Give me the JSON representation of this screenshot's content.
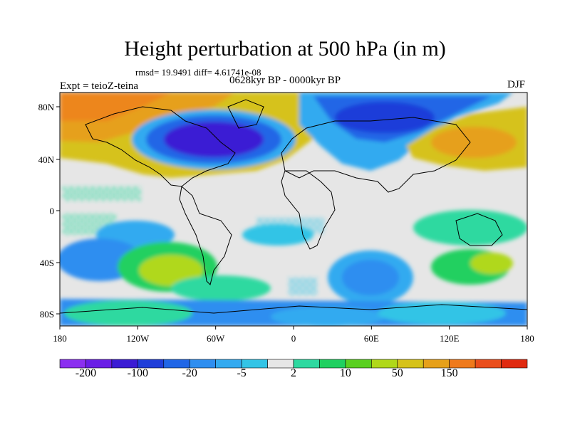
{
  "title": "Height perturbation at 500 hPa (in m)",
  "stats": "rmsd= 19.9491 diff= 4.61741e-08",
  "period": "0628kyr BP - 0000kyr BP",
  "experiment": "Expt = teioZ-teina",
  "season": "DJF",
  "map": {
    "lat_ticks": [
      "80N",
      "40N",
      "0",
      "40S",
      "80S"
    ],
    "lon_ticks": [
      "180",
      "120W",
      "60W",
      "0",
      "60E",
      "120E",
      "180"
    ]
  },
  "colorbar": {
    "colors": [
      "#8b2ff0",
      "#6a1ee6",
      "#3b1cd4",
      "#1f3ed9",
      "#2066e6",
      "#2e8ef0",
      "#33aaf0",
      "#33c4e6",
      "#e6e6e6",
      "#2ed9a0",
      "#20d060",
      "#5ad020",
      "#b0d81a",
      "#d6c21a",
      "#e6a01a",
      "#ef7a1c",
      "#ea4e1c",
      "#e02a10"
    ],
    "labels": [
      {
        "text": "-200",
        "slot": 1
      },
      {
        "text": "-100",
        "slot": 3
      },
      {
        "text": "-20",
        "slot": 5
      },
      {
        "text": "-5",
        "slot": 7
      },
      {
        "text": "2",
        "slot": 9
      },
      {
        "text": "10",
        "slot": 11
      },
      {
        "text": "50",
        "slot": 13
      },
      {
        "text": "150",
        "slot": 15
      }
    ]
  }
}
